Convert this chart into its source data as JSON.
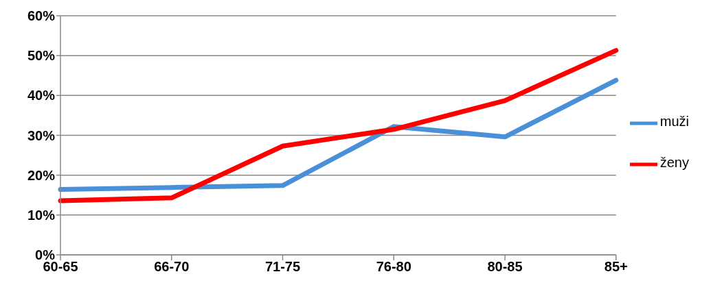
{
  "chart_data": {
    "type": "line",
    "categories": [
      "60-65",
      "66-70",
      "71-75",
      "76-80",
      "80-85",
      "85+"
    ],
    "series": [
      {
        "name": "muži",
        "color": "#4a90d9",
        "values": [
          16.4,
          16.9,
          17.4,
          32.2,
          29.6,
          43.8
        ]
      },
      {
        "name": "ženy",
        "color": "#ff0000",
        "values": [
          13.6,
          14.3,
          27.3,
          31.5,
          38.7,
          51.3
        ]
      }
    ],
    "ylim": [
      0,
      60
    ],
    "yticks": [
      {
        "value": 0,
        "label": "0%"
      },
      {
        "value": 10,
        "label": "10%"
      },
      {
        "value": 20,
        "label": "20%"
      },
      {
        "value": 30,
        "label": "30%"
      },
      {
        "value": 40,
        "label": "40%"
      },
      {
        "value": 50,
        "label": "50%"
      },
      {
        "value": 60,
        "label": "60%"
      }
    ],
    "grid": "y",
    "legend": "right",
    "marker": "none",
    "line_style": "solid"
  }
}
